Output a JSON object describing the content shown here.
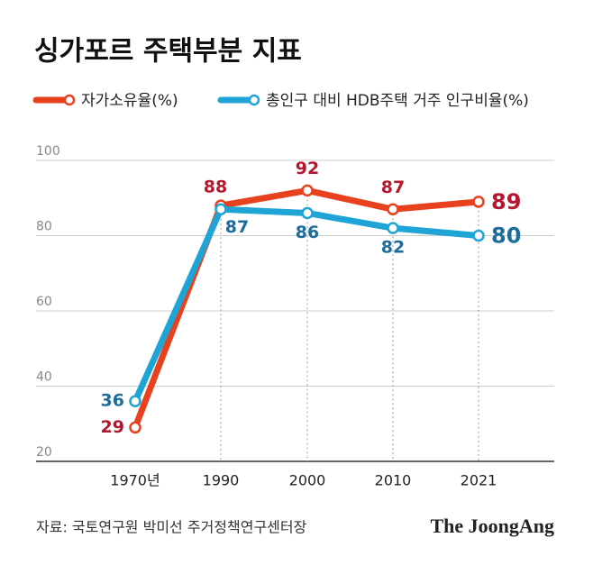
{
  "chart_data": {
    "type": "line",
    "title": "싱가포르 주택부분 지표",
    "categories": [
      "1970년",
      "1990",
      "2000",
      "2010",
      "2021"
    ],
    "series": [
      {
        "name": "자가소유율(%)",
        "color": "#e8411e",
        "label_color": "#b5172f",
        "values": [
          29,
          88,
          92,
          87,
          89
        ]
      },
      {
        "name": "총인구 대비 HDB주택 거주 인구비율(%)",
        "color": "#1fa4d6",
        "label_color": "#1d6d9c",
        "values": [
          36,
          87,
          86,
          82,
          80
        ]
      }
    ],
    "ylim": [
      20,
      100
    ],
    "yticks": [
      20,
      40,
      60,
      80,
      100
    ],
    "grid": true,
    "source": "자료: 국토연구원 박미선 주거정책연구센터장",
    "brand": "The JoongAng"
  }
}
